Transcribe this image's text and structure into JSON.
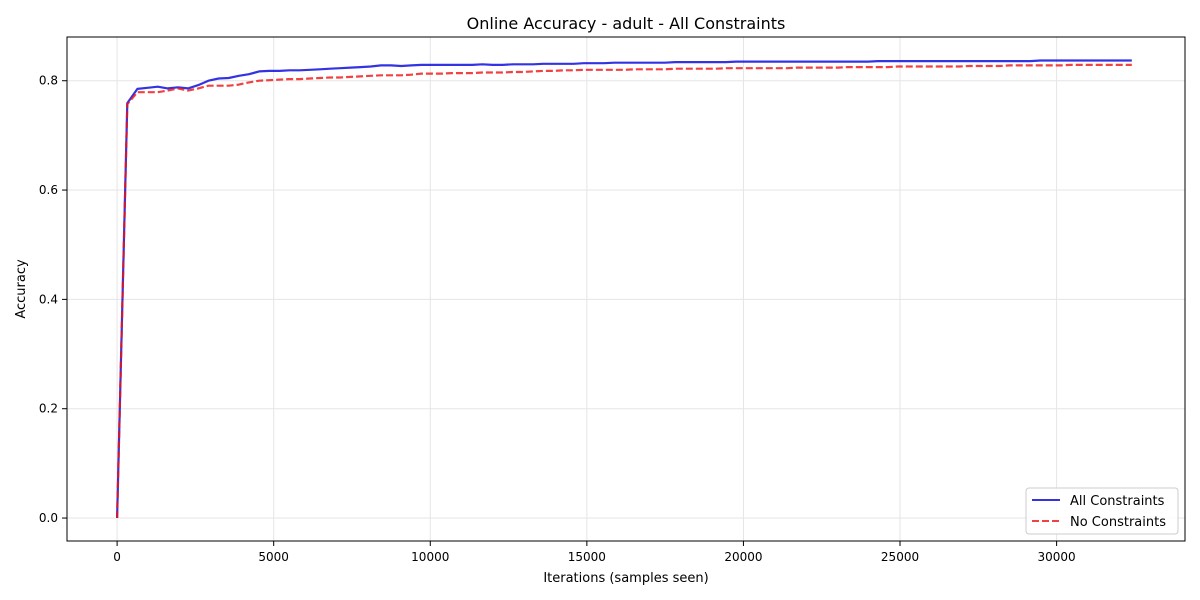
{
  "chart_data": {
    "type": "line",
    "title": "Online Accuracy - adult - All Constraints",
    "xlabel": "Iterations (samples seen)",
    "ylabel": "Accuracy",
    "xlim": [
      -1600,
      34100
    ],
    "ylim": [
      -0.042,
      0.88
    ],
    "xticks": [
      {
        "value": 0,
        "label": "0"
      },
      {
        "value": 5000,
        "label": "5000"
      },
      {
        "value": 10000,
        "label": "10000"
      },
      {
        "value": 15000,
        "label": "15000"
      },
      {
        "value": 20000,
        "label": "20000"
      },
      {
        "value": 25000,
        "label": "25000"
      },
      {
        "value": 30000,
        "label": "30000"
      }
    ],
    "yticks": [
      {
        "value": 0.0,
        "label": "0.0"
      },
      {
        "value": 0.2,
        "label": "0.2"
      },
      {
        "value": 0.4,
        "label": "0.4"
      },
      {
        "value": 0.6,
        "label": "0.6"
      },
      {
        "value": 0.8,
        "label": "0.8"
      }
    ],
    "grid": true,
    "legend_position": "bottom-right",
    "series": [
      {
        "name": "All Constraints",
        "color": "#0000dd",
        "style": "solid",
        "x": [
          0,
          324,
          648,
          972,
          1296,
          1620,
          1944,
          2268,
          2592,
          2916,
          3240,
          3564,
          3888,
          4212,
          4536,
          4860,
          5184,
          5508,
          5832,
          6156,
          6480,
          6804,
          7128,
          7452,
          7776,
          8100,
          8424,
          8748,
          9072,
          9396,
          9720,
          10044,
          10368,
          10692,
          11016,
          11340,
          11664,
          11988,
          12312,
          12636,
          12960,
          13284,
          13608,
          13932,
          14256,
          14580,
          14904,
          15228,
          15552,
          15876,
          16200,
          16524,
          16848,
          17172,
          17496,
          17820,
          18144,
          18468,
          18792,
          19116,
          19440,
          19764,
          20088,
          20412,
          20736,
          21060,
          21384,
          21708,
          22032,
          22356,
          22680,
          23004,
          23328,
          23652,
          23976,
          24300,
          24624,
          24948,
          25272,
          25596,
          25920,
          26244,
          26568,
          26892,
          27216,
          27540,
          27864,
          28188,
          28512,
          28836,
          29160,
          29484,
          29808,
          30132,
          30456,
          30780,
          31104,
          31428,
          31752,
          32076,
          32400
        ],
        "y": [
          0.0,
          0.759,
          0.785,
          0.787,
          0.789,
          0.786,
          0.788,
          0.786,
          0.792,
          0.8,
          0.804,
          0.805,
          0.809,
          0.812,
          0.817,
          0.818,
          0.818,
          0.819,
          0.819,
          0.82,
          0.821,
          0.822,
          0.823,
          0.824,
          0.825,
          0.826,
          0.828,
          0.828,
          0.827,
          0.828,
          0.829,
          0.829,
          0.829,
          0.829,
          0.829,
          0.829,
          0.83,
          0.829,
          0.829,
          0.83,
          0.83,
          0.83,
          0.831,
          0.831,
          0.831,
          0.831,
          0.832,
          0.832,
          0.832,
          0.833,
          0.833,
          0.833,
          0.833,
          0.833,
          0.833,
          0.834,
          0.834,
          0.834,
          0.834,
          0.834,
          0.834,
          0.835,
          0.835,
          0.835,
          0.835,
          0.835,
          0.835,
          0.835,
          0.835,
          0.835,
          0.835,
          0.835,
          0.835,
          0.835,
          0.835,
          0.836,
          0.836,
          0.836,
          0.836,
          0.836,
          0.836,
          0.836,
          0.836,
          0.836,
          0.836,
          0.836,
          0.836,
          0.836,
          0.836,
          0.836,
          0.836,
          0.837,
          0.837,
          0.837,
          0.837,
          0.837,
          0.837,
          0.837,
          0.837,
          0.837,
          0.837
        ]
      },
      {
        "name": "No Constraints",
        "color": "#ee1111",
        "style": "dashed",
        "x": [
          0,
          324,
          648,
          972,
          1296,
          1620,
          1944,
          2268,
          2592,
          2916,
          3240,
          3564,
          3888,
          4212,
          4536,
          4860,
          5184,
          5508,
          5832,
          6156,
          6480,
          6804,
          7128,
          7452,
          7776,
          8100,
          8424,
          8748,
          9072,
          9396,
          9720,
          10044,
          10368,
          10692,
          11016,
          11340,
          11664,
          11988,
          12312,
          12636,
          12960,
          13284,
          13608,
          13932,
          14256,
          14580,
          14904,
          15228,
          15552,
          15876,
          16200,
          16524,
          16848,
          17172,
          17496,
          17820,
          18144,
          18468,
          18792,
          19116,
          19440,
          19764,
          20088,
          20412,
          20736,
          21060,
          21384,
          21708,
          22032,
          22356,
          22680,
          23004,
          23328,
          23652,
          23976,
          24300,
          24624,
          24948,
          25272,
          25596,
          25920,
          26244,
          26568,
          26892,
          27216,
          27540,
          27864,
          28188,
          28512,
          28836,
          29160,
          29484,
          29808,
          30132,
          30456,
          30780,
          31104,
          31428,
          31752,
          32076,
          32400
        ],
        "y": [
          0.0,
          0.757,
          0.779,
          0.779,
          0.779,
          0.782,
          0.786,
          0.782,
          0.786,
          0.791,
          0.791,
          0.791,
          0.793,
          0.797,
          0.8,
          0.801,
          0.802,
          0.803,
          0.803,
          0.804,
          0.805,
          0.806,
          0.806,
          0.807,
          0.808,
          0.809,
          0.81,
          0.81,
          0.81,
          0.811,
          0.813,
          0.813,
          0.813,
          0.814,
          0.814,
          0.814,
          0.815,
          0.815,
          0.815,
          0.816,
          0.816,
          0.817,
          0.818,
          0.818,
          0.819,
          0.819,
          0.82,
          0.82,
          0.82,
          0.82,
          0.82,
          0.821,
          0.821,
          0.821,
          0.821,
          0.822,
          0.822,
          0.822,
          0.822,
          0.822,
          0.823,
          0.823,
          0.823,
          0.823,
          0.823,
          0.823,
          0.823,
          0.824,
          0.824,
          0.824,
          0.824,
          0.824,
          0.825,
          0.825,
          0.825,
          0.825,
          0.825,
          0.826,
          0.826,
          0.826,
          0.826,
          0.826,
          0.826,
          0.826,
          0.827,
          0.827,
          0.827,
          0.827,
          0.828,
          0.828,
          0.828,
          0.828,
          0.828,
          0.828,
          0.829,
          0.829,
          0.829,
          0.829,
          0.829,
          0.829,
          0.829
        ]
      }
    ]
  }
}
